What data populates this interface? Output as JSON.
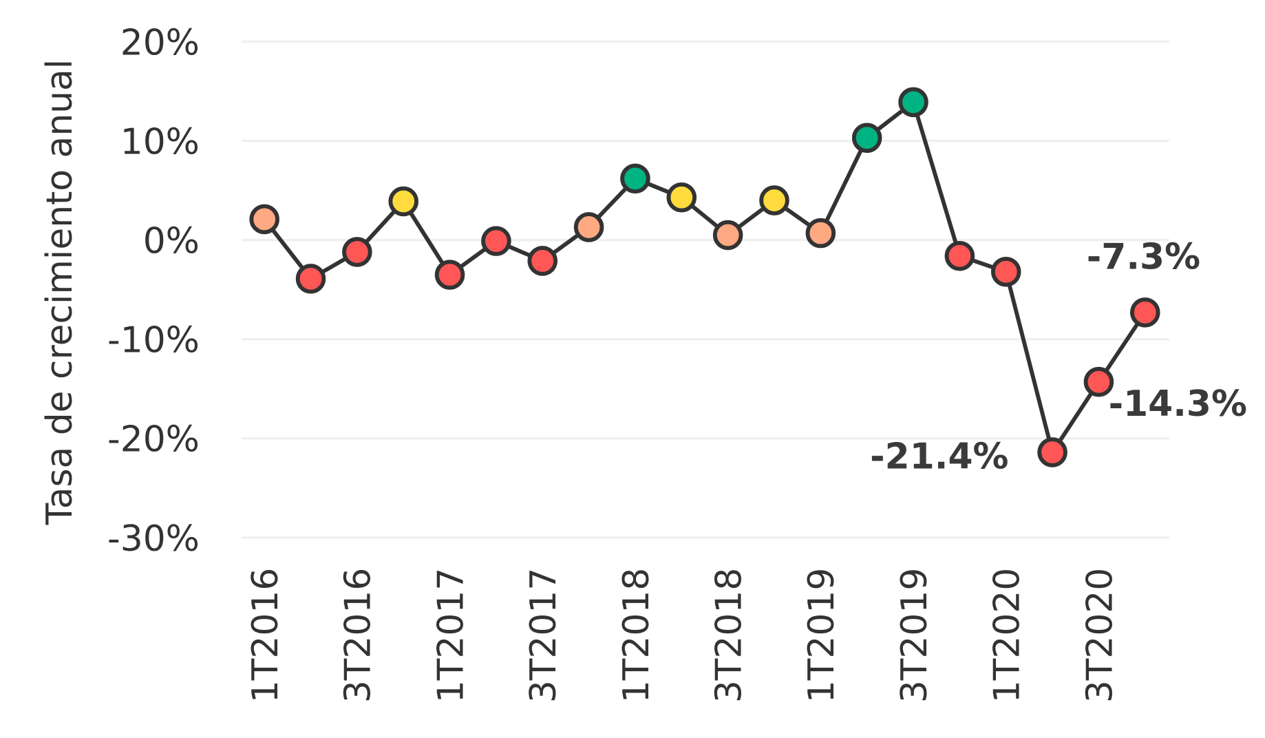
{
  "chart_data": {
    "type": "line",
    "title": "",
    "xlabel": "",
    "ylabel": "Tasa de crecimiento anual",
    "ylim": [
      -30,
      20
    ],
    "yticks": [
      20,
      10,
      0,
      -10,
      -20,
      -30
    ],
    "ytick_labels": [
      "20%",
      "10%",
      "0%",
      "-10%",
      "-20%",
      "-30%"
    ],
    "grid": true,
    "categories": [
      "1T2016",
      "2T2016",
      "3T2016",
      "4T2016",
      "1T2017",
      "2T2017",
      "3T2017",
      "4T2017",
      "1T2018",
      "2T2018",
      "3T2018",
      "4T2018",
      "1T2019",
      "2T2019",
      "3T2019",
      "4T2019",
      "1T2020",
      "2T2020",
      "3T2020",
      "4T2020"
    ],
    "xtick_labels": [
      "1T2016",
      "3T2016",
      "1T2017",
      "3T2017",
      "1T2018",
      "3T2018",
      "1T2019",
      "3T2019",
      "1T2020",
      "3T2020"
    ],
    "values": [
      2.1,
      -3.9,
      -1.2,
      3.9,
      -3.5,
      -0.1,
      -2.1,
      1.3,
      6.2,
      4.3,
      0.5,
      4.0,
      0.7,
      10.3,
      13.9,
      -1.6,
      -3.2,
      -21.4,
      -14.3,
      -7.3
    ],
    "point_colors": [
      "#FFA983",
      "#FF5656",
      "#FF5656",
      "#FFDB3D",
      "#FF5656",
      "#FF5656",
      "#FF5656",
      "#FFA983",
      "#00B383",
      "#FFDB3D",
      "#FFA983",
      "#FFDB3D",
      "#FFA983",
      "#00B383",
      "#00B383",
      "#FF5656",
      "#FF5656",
      "#FF5656",
      "#FF5656",
      "#FF5656"
    ],
    "line_color": "#333333",
    "annotations": [
      {
        "index": 17,
        "text": "-21.4%",
        "position": "left"
      },
      {
        "index": 18,
        "text": "-14.3%",
        "position": "right"
      },
      {
        "index": 19,
        "text": "-7.3%",
        "position": "above"
      }
    ]
  }
}
